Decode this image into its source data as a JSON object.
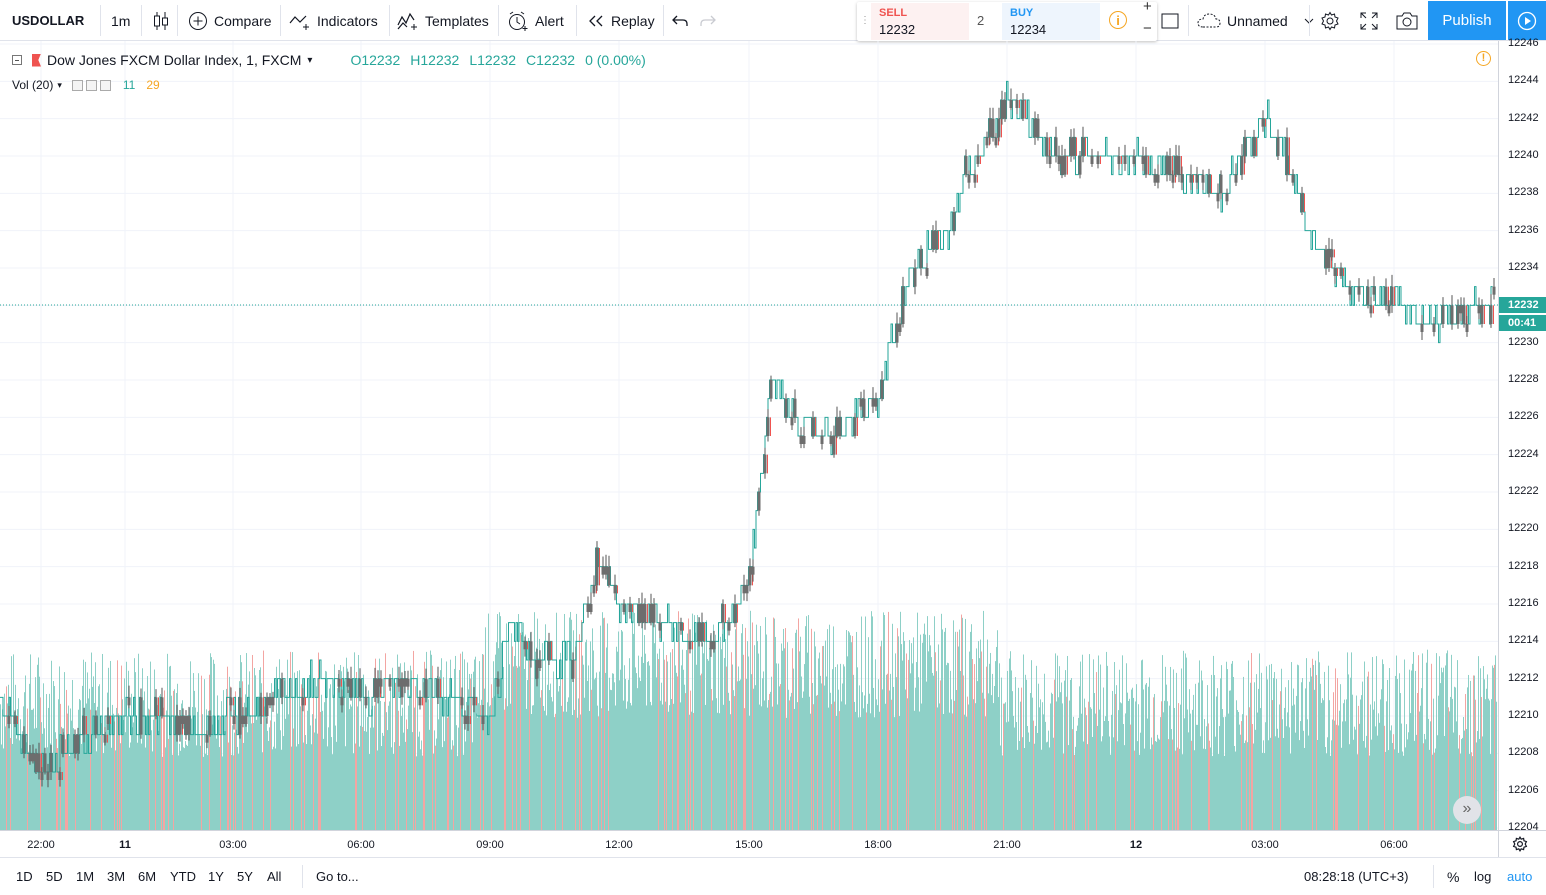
{
  "toolbar": {
    "symbol": "USDOLLAR",
    "interval": "1m",
    "compare": "Compare",
    "indicators": "Indicators",
    "templates": "Templates",
    "alert": "Alert",
    "replay": "Replay",
    "layout_name": "Unnamed",
    "publish": "Publish"
  },
  "trade": {
    "sell_label": "SELL",
    "sell_price": "12232",
    "spread": "2",
    "buy_label": "BUY",
    "buy_price": "12234",
    "sell_color": "#ef5350",
    "buy_color": "#2196f3"
  },
  "legend": {
    "title": "Dow Jones FXCM Dollar Index, 1, FXCM",
    "open": "O12232",
    "high": "H12232",
    "low": "L12232",
    "close": "C12232",
    "change": "0 (0.00%)",
    "vol_label": "Vol (20)",
    "vol_value_a": "11",
    "vol_value_b": "29"
  },
  "price_scale": {
    "labels": [
      "12246",
      "12244",
      "12242",
      "12240",
      "12238",
      "12236",
      "12234",
      "12232",
      "12230",
      "12228",
      "12226",
      "12224",
      "12222",
      "12220",
      "12218",
      "12216",
      "12214",
      "12212",
      "12210",
      "12208",
      "12206",
      "12204"
    ],
    "last_price": "12232",
    "countdown": "00:41"
  },
  "time_scale": {
    "labels": [
      {
        "text": "22:00",
        "bold": false
      },
      {
        "text": "11",
        "bold": true
      },
      {
        "text": "03:00",
        "bold": false
      },
      {
        "text": "06:00",
        "bold": false
      },
      {
        "text": "09:00",
        "bold": false
      },
      {
        "text": "12:00",
        "bold": false
      },
      {
        "text": "15:00",
        "bold": false
      },
      {
        "text": "18:00",
        "bold": false
      },
      {
        "text": "21:00",
        "bold": false
      },
      {
        "text": "12",
        "bold": true
      },
      {
        "text": "03:00",
        "bold": false
      },
      {
        "text": "06:00",
        "bold": false
      }
    ]
  },
  "bottom_bar": {
    "ranges": [
      "1D",
      "5D",
      "1M",
      "3M",
      "6M",
      "YTD",
      "1Y",
      "5Y",
      "All"
    ],
    "goto": "Go to...",
    "clock": "08:28:18 (UTC+3)",
    "percent": "%",
    "log": "log",
    "auto": "auto"
  },
  "colors": {
    "up": "#26a69a",
    "down": "#ef5350",
    "candle_body": "#6d6d6d",
    "volume_up": "#8ed0c7",
    "volume_down": "#f3a5a2",
    "accent": "#2196f3"
  },
  "chart_data": {
    "type": "line",
    "xlabel": "",
    "ylabel": "",
    "ylim": [
      12204,
      12246
    ],
    "x_ticks": [
      "22:00",
      "11",
      "03:00",
      "06:00",
      "09:00",
      "12:00",
      "15:00",
      "18:00",
      "21:00",
      "12",
      "03:00",
      "06:00"
    ],
    "series": [
      {
        "x": [
          "21:00",
          "22:00",
          "23:00",
          "00:00",
          "01:00",
          "02:00",
          "03:00",
          "04:00",
          "05:00",
          "06:00",
          "07:00",
          "08:00",
          "09:00",
          "09:30",
          "10:00",
          "11:00",
          "11:30",
          "12:00",
          "13:00",
          "14:00",
          "14:30",
          "15:00",
          "15:30",
          "16:00",
          "17:00",
          "18:00",
          "18:30",
          "19:00",
          "19:30",
          "20:00",
          "20:30",
          "21:00",
          "21:30",
          "22:00",
          "23:00",
          "00:00",
          "01:00",
          "02:00",
          "03:00",
          "03:30",
          "04:00",
          "05:00",
          "06:00",
          "07:00",
          "08:00"
        ],
        "values": [
          12211,
          12207,
          12209,
          12210,
          12210,
          12209,
          12210,
          12211,
          12212,
          12211,
          12212,
          12211,
          12210,
          12215,
          12213,
          12213,
          12219,
          12216,
          12215,
          12214,
          12215,
          12217,
          12228,
          12226,
          12225,
          12227,
          12232,
          12235,
          12235,
          12239,
          12241,
          12243,
          12242,
          12240,
          12240,
          12240,
          12239,
          12238,
          12242,
          12240,
          12236,
          12233,
          12232,
          12231,
          12232
        ]
      }
    ]
  }
}
